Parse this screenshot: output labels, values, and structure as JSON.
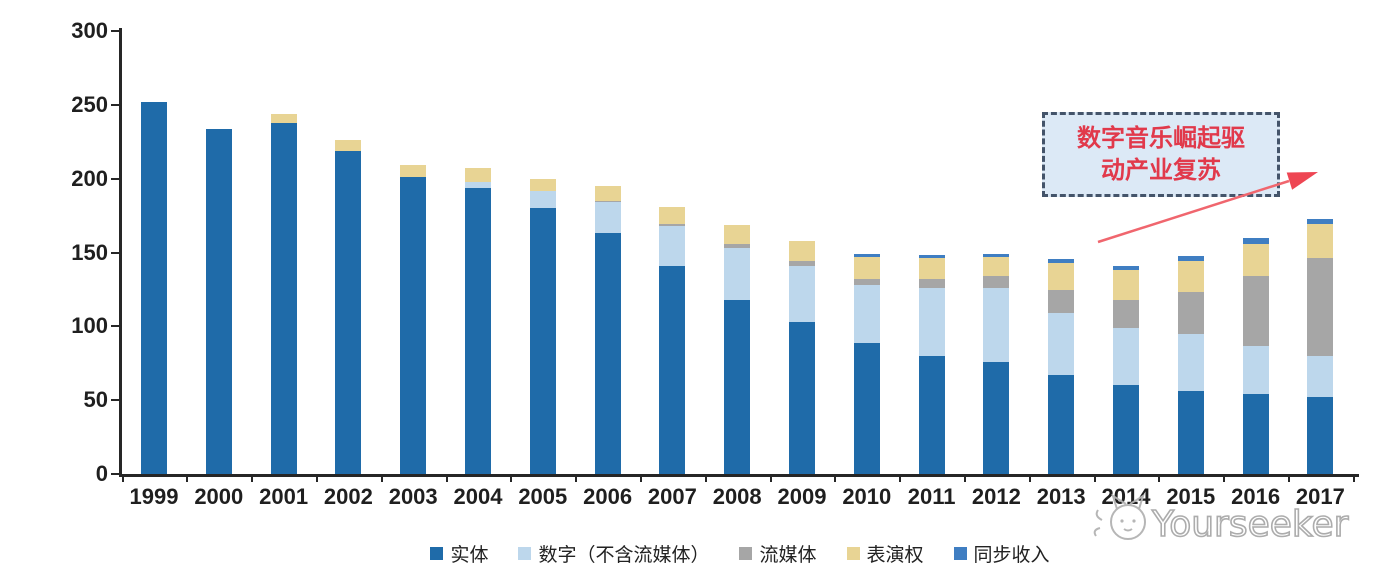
{
  "chart_data": {
    "type": "bar",
    "stacked": true,
    "title": "",
    "categories": [
      "1999",
      "2000",
      "2001",
      "2002",
      "2003",
      "2004",
      "2005",
      "2006",
      "2007",
      "2008",
      "2009",
      "2010",
      "2011",
      "2012",
      "2013",
      "2014",
      "2015",
      "2016",
      "2017"
    ],
    "series": [
      {
        "name": "实体",
        "color": "#1f6ba9",
        "values": [
          252,
          234,
          238,
          219,
          201,
          194,
          180,
          163,
          141,
          118,
          103,
          89,
          80,
          76,
          67,
          60,
          56,
          54,
          52
        ]
      },
      {
        "name": "数字（不含流媒体）",
        "color": "#bdd7ec",
        "values": [
          0,
          0,
          0,
          0,
          0,
          4,
          12,
          21,
          27,
          35,
          38,
          39,
          46,
          50,
          42,
          39,
          39,
          33,
          28
        ]
      },
      {
        "name": "流媒体",
        "color": "#a6a6a6",
        "values": [
          0,
          0,
          0,
          0,
          0,
          0,
          0,
          1,
          1,
          3,
          3,
          4,
          6,
          8,
          16,
          19,
          28,
          47,
          66
        ]
      },
      {
        "name": "表演权",
        "color": "#e8d494",
        "values": [
          0,
          0,
          6,
          7,
          8,
          9,
          8,
          10,
          12,
          13,
          14,
          15,
          14,
          13,
          18,
          20,
          21,
          22,
          23
        ]
      },
      {
        "name": "同步收入",
        "color": "#3f7ec2",
        "values": [
          0,
          0,
          0,
          0,
          0,
          0,
          0,
          0,
          0,
          0,
          0,
          2,
          2,
          2,
          3,
          3,
          4,
          4,
          4
        ]
      }
    ],
    "totals": [
      252,
      234,
      244,
      226,
      209,
      207,
      200,
      195,
      181,
      169,
      158,
      149,
      148,
      149,
      146,
      141,
      148,
      160,
      173
    ],
    "xlabel": "",
    "ylabel": "",
    "ylim": [
      0,
      300
    ],
    "yticks": [
      0,
      50,
      100,
      150,
      200,
      250,
      300
    ],
    "grid": false,
    "legend_position": "bottom"
  },
  "legend": {
    "items": [
      {
        "label": "实体",
        "color": "#1f6ba9"
      },
      {
        "label": "数字（不含流媒体）",
        "color": "#bdd7ec"
      },
      {
        "label": "流媒体",
        "color": "#a6a6a6"
      },
      {
        "label": "表演权",
        "color": "#e8d494"
      },
      {
        "label": "同步收入",
        "color": "#3f7ec2"
      }
    ]
  },
  "annotation": {
    "text_lines": [
      "数字音乐崛起驱",
      "动产业复苏"
    ],
    "full_text": "数字音乐崛起驱动产业复苏",
    "box_fill": "#dce9f6",
    "border_color": "#44546a",
    "text_color": "#e1394b",
    "arrow_color": "#ee4653"
  },
  "watermark": {
    "brand": "Yourseeker",
    "logo": "cat-logo",
    "color": "#b0b0b0"
  }
}
